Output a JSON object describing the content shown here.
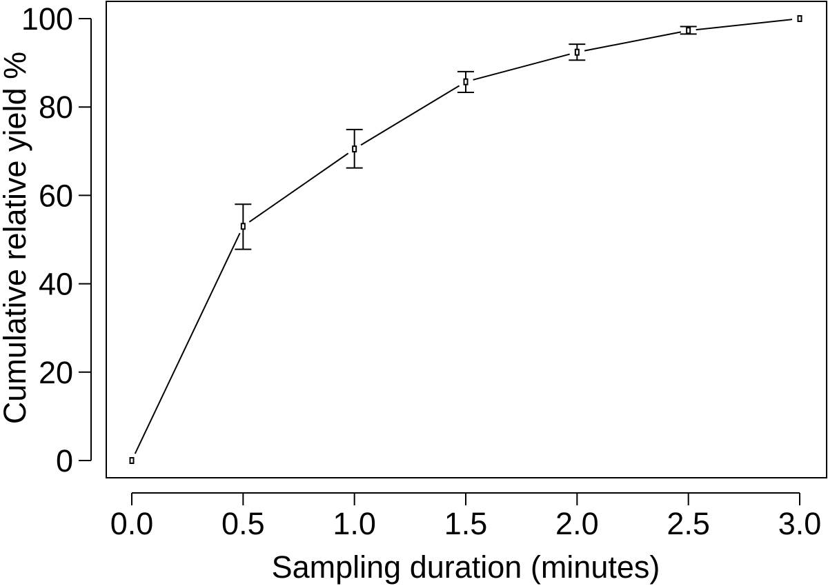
{
  "chart_data": {
    "type": "line",
    "title": "",
    "xlabel": "Sampling duration (minutes)",
    "ylabel": "Cumulative relative yield %",
    "x": [
      0.0,
      0.5,
      1.0,
      1.5,
      2.0,
      2.5,
      3.0
    ],
    "xticks": [
      "0.0",
      "0.5",
      "1.0",
      "1.5",
      "2.0",
      "2.5",
      "3.0"
    ],
    "yticks": [
      "0",
      "20",
      "40",
      "60",
      "80",
      "100"
    ],
    "xlim": [
      -0.12,
      3.12
    ],
    "ylim": [
      -4,
      104
    ],
    "grid": false,
    "series": [
      {
        "name": "Cumulative relative yield",
        "values": [
          0.0,
          53.0,
          70.5,
          85.7,
          92.4,
          97.3,
          100.0
        ],
        "error_low": [
          0.0,
          47.8,
          66.2,
          83.3,
          90.6,
          96.5,
          99.7
        ],
        "error_high": [
          0.0,
          58.0,
          74.9,
          88.0,
          94.2,
          98.2,
          100.3
        ]
      }
    ],
    "colors": {
      "line": "#000000",
      "axis": "#000000",
      "background": "#ffffff"
    }
  }
}
